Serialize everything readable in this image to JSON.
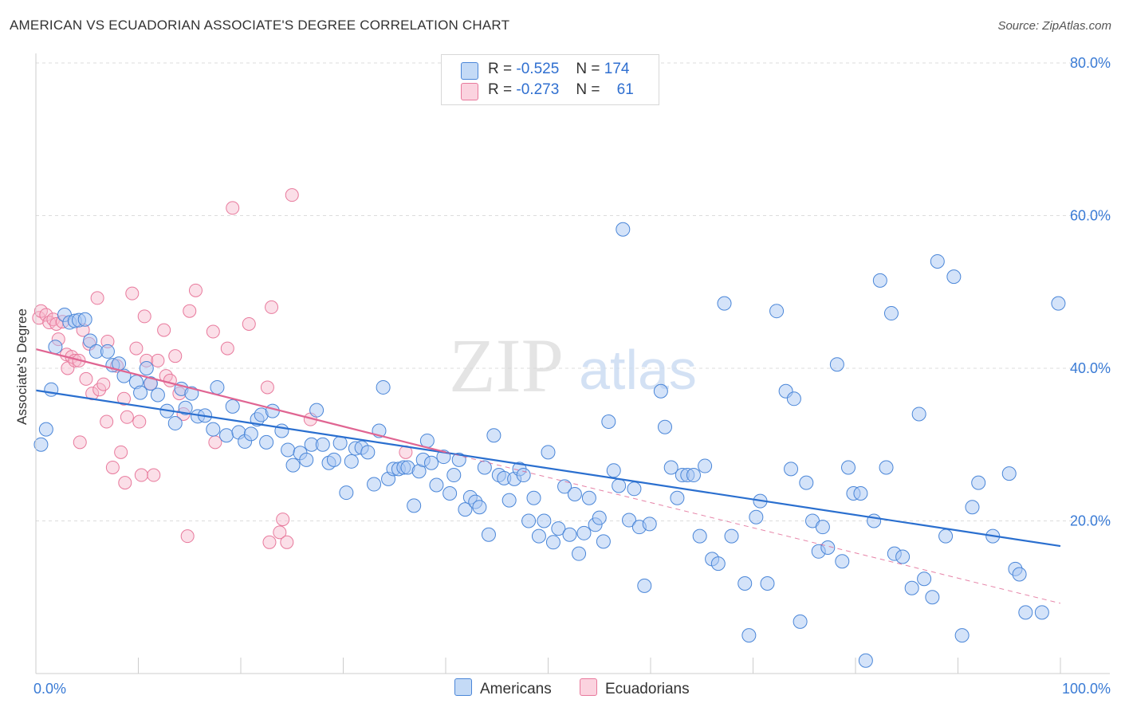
{
  "title": "AMERICAN VS ECUADORIAN ASSOCIATE'S DEGREE CORRELATION CHART",
  "source": "Source: ZipAtlas.com",
  "legend": {
    "r_label": "R =",
    "n_label": "N =",
    "rows": [
      {
        "r": "-0.525",
        "n": "174",
        "color": "#a9c8f3"
      },
      {
        "r": "-0.273",
        "n": "61",
        "color": "#f6b8cb"
      }
    ]
  },
  "bottom_legend": [
    {
      "label": "Americans",
      "color": "#a9c8f3"
    },
    {
      "label": "Ecuadorians",
      "color": "#f6b8cb"
    }
  ],
  "watermark": {
    "zip": "ZIP",
    "atlas": "atlas"
  },
  "chart_data": {
    "type": "scatter",
    "title": "AMERICAN VS ECUADORIAN ASSOCIATE'S DEGREE CORRELATION CHART",
    "xlabel": "",
    "ylabel": "Associate's Degree",
    "xlim": [
      0,
      100
    ],
    "ylim": [
      0,
      80
    ],
    "x_tick_labels": [
      "0.0%",
      "100.0%"
    ],
    "y_tick_labels": [
      "20.0%",
      "40.0%",
      "60.0%",
      "80.0%"
    ],
    "y_ticks": [
      20,
      40,
      60,
      80
    ],
    "grid": true,
    "legend_position": "top-center",
    "colors": {
      "americans": "#4a86d8",
      "americans_fill": "#a9c8f3",
      "ecuadorians": "#e8799c",
      "ecuadorians_fill": "#f6b8cb",
      "trend_blue": "#2a6fcf",
      "trend_pink": "#e06592"
    },
    "series": [
      {
        "name": "Americans",
        "r": -0.525,
        "n": 174,
        "trend": {
          "x": [
            0,
            100
          ],
          "y": [
            37.1,
            16.7
          ]
        },
        "points": [
          [
            0.5,
            30.0
          ],
          [
            1.0,
            32.0
          ],
          [
            1.5,
            37.2
          ],
          [
            1.9,
            42.8
          ],
          [
            2.8,
            47.0
          ],
          [
            3.3,
            46.0
          ],
          [
            3.8,
            46.2
          ],
          [
            4.2,
            46.3
          ],
          [
            4.8,
            46.4
          ],
          [
            5.3,
            43.6
          ],
          [
            5.9,
            42.2
          ],
          [
            7.0,
            42.2
          ],
          [
            7.5,
            40.4
          ],
          [
            8.1,
            40.6
          ],
          [
            8.6,
            39.0
          ],
          [
            9.8,
            38.2
          ],
          [
            10.2,
            36.8
          ],
          [
            10.8,
            40.0
          ],
          [
            11.2,
            38.0
          ],
          [
            11.9,
            36.5
          ],
          [
            12.8,
            34.4
          ],
          [
            13.6,
            32.8
          ],
          [
            14.2,
            37.3
          ],
          [
            14.6,
            34.8
          ],
          [
            15.2,
            36.7
          ],
          [
            15.8,
            33.7
          ],
          [
            16.5,
            33.8
          ],
          [
            17.3,
            32.0
          ],
          [
            17.7,
            37.5
          ],
          [
            18.6,
            31.2
          ],
          [
            19.2,
            35.0
          ],
          [
            19.8,
            31.6
          ],
          [
            20.4,
            30.4
          ],
          [
            21.0,
            31.4
          ],
          [
            21.6,
            33.3
          ],
          [
            22.0,
            33.9
          ],
          [
            22.5,
            30.3
          ],
          [
            23.1,
            34.4
          ],
          [
            24.0,
            31.8
          ],
          [
            24.6,
            29.3
          ],
          [
            25.1,
            27.3
          ],
          [
            25.8,
            28.9
          ],
          [
            26.4,
            28.0
          ],
          [
            26.9,
            30.0
          ],
          [
            27.4,
            34.5
          ],
          [
            28.0,
            30.0
          ],
          [
            28.6,
            27.6
          ],
          [
            29.1,
            28.0
          ],
          [
            29.7,
            30.2
          ],
          [
            30.3,
            23.7
          ],
          [
            30.8,
            27.8
          ],
          [
            31.2,
            29.5
          ],
          [
            31.8,
            29.6
          ],
          [
            32.4,
            29.0
          ],
          [
            33.0,
            24.8
          ],
          [
            33.5,
            31.8
          ],
          [
            33.9,
            37.5
          ],
          [
            34.4,
            25.5
          ],
          [
            34.9,
            26.8
          ],
          [
            35.4,
            26.8
          ],
          [
            35.9,
            27.0
          ],
          [
            36.3,
            27.0
          ],
          [
            36.9,
            22.0
          ],
          [
            37.4,
            26.5
          ],
          [
            37.8,
            28.0
          ],
          [
            38.2,
            30.5
          ],
          [
            38.6,
            27.6
          ],
          [
            39.1,
            24.7
          ],
          [
            39.8,
            28.4
          ],
          [
            40.4,
            23.6
          ],
          [
            40.8,
            26.0
          ],
          [
            41.3,
            28.0
          ],
          [
            41.9,
            21.5
          ],
          [
            42.4,
            23.1
          ],
          [
            42.9,
            22.5
          ],
          [
            43.3,
            21.8
          ],
          [
            43.8,
            27.0
          ],
          [
            44.2,
            18.2
          ],
          [
            44.7,
            31.2
          ],
          [
            45.2,
            26.0
          ],
          [
            45.7,
            25.6
          ],
          [
            46.2,
            22.7
          ],
          [
            46.7,
            25.5
          ],
          [
            47.2,
            26.8
          ],
          [
            47.6,
            26.0
          ],
          [
            48.1,
            20.0
          ],
          [
            48.6,
            23.0
          ],
          [
            49.1,
            18.0
          ],
          [
            49.6,
            20.0
          ],
          [
            50.0,
            29.0
          ],
          [
            50.5,
            17.2
          ],
          [
            51.0,
            19.0
          ],
          [
            51.6,
            24.5
          ],
          [
            52.1,
            18.2
          ],
          [
            52.6,
            23.5
          ],
          [
            53.0,
            15.7
          ],
          [
            53.5,
            18.4
          ],
          [
            54.0,
            23.0
          ],
          [
            54.6,
            19.5
          ],
          [
            55.0,
            20.4
          ],
          [
            55.4,
            17.3
          ],
          [
            55.9,
            33.0
          ],
          [
            56.4,
            26.6
          ],
          [
            56.9,
            24.6
          ],
          [
            57.3,
            58.2
          ],
          [
            57.9,
            20.1
          ],
          [
            58.4,
            24.2
          ],
          [
            58.9,
            19.2
          ],
          [
            59.4,
            11.5
          ],
          [
            59.9,
            19.6
          ],
          [
            61.0,
            37.0
          ],
          [
            61.4,
            32.3
          ],
          [
            62.0,
            27.0
          ],
          [
            62.6,
            23.0
          ],
          [
            63.1,
            26.0
          ],
          [
            63.6,
            26.0
          ],
          [
            64.2,
            26.0
          ],
          [
            64.8,
            18.0
          ],
          [
            65.3,
            27.2
          ],
          [
            66.0,
            15.0
          ],
          [
            66.6,
            14.4
          ],
          [
            67.2,
            48.5
          ],
          [
            67.9,
            18.0
          ],
          [
            69.2,
            11.8
          ],
          [
            69.6,
            5.0
          ],
          [
            70.3,
            20.5
          ],
          [
            70.7,
            22.6
          ],
          [
            71.4,
            11.8
          ],
          [
            72.3,
            47.5
          ],
          [
            73.2,
            37.0
          ],
          [
            73.7,
            26.8
          ],
          [
            74.0,
            36.0
          ],
          [
            74.6,
            6.8
          ],
          [
            75.2,
            25.0
          ],
          [
            75.8,
            20.0
          ],
          [
            76.4,
            16.0
          ],
          [
            76.8,
            19.2
          ],
          [
            77.3,
            16.5
          ],
          [
            78.2,
            40.5
          ],
          [
            78.7,
            14.7
          ],
          [
            79.3,
            27.0
          ],
          [
            79.8,
            23.6
          ],
          [
            80.5,
            23.6
          ],
          [
            81.0,
            1.7
          ],
          [
            81.8,
            20.0
          ],
          [
            82.4,
            51.5
          ],
          [
            83.0,
            27.0
          ],
          [
            83.5,
            47.2
          ],
          [
            83.8,
            15.7
          ],
          [
            84.6,
            15.3
          ],
          [
            85.5,
            11.2
          ],
          [
            86.2,
            34.0
          ],
          [
            86.7,
            12.4
          ],
          [
            87.5,
            10.0
          ],
          [
            88.0,
            54.0
          ],
          [
            88.8,
            18.0
          ],
          [
            89.6,
            52.0
          ],
          [
            90.4,
            5.0
          ],
          [
            91.4,
            21.8
          ],
          [
            92.0,
            25.0
          ],
          [
            93.4,
            18.0
          ],
          [
            95.0,
            26.2
          ],
          [
            95.6,
            13.7
          ],
          [
            96.0,
            13.0
          ],
          [
            96.6,
            8.0
          ],
          [
            98.2,
            8.0
          ],
          [
            99.8,
            48.5
          ]
        ]
      },
      {
        "name": "Ecuadorians",
        "r": -0.273,
        "n": 61,
        "trend_solid": {
          "x": [
            0,
            40
          ],
          "y": [
            42.5,
            29.0
          ]
        },
        "trend_dashed": {
          "x": [
            40,
            100
          ],
          "y": [
            29.0,
            9.2
          ]
        },
        "points": [
          [
            0.3,
            46.6
          ],
          [
            0.5,
            47.5
          ],
          [
            1.0,
            47.0
          ],
          [
            1.3,
            46.0
          ],
          [
            1.7,
            46.4
          ],
          [
            2.0,
            45.8
          ],
          [
            2.2,
            43.8
          ],
          [
            2.6,
            46.1
          ],
          [
            3.0,
            41.8
          ],
          [
            3.1,
            40.0
          ],
          [
            3.5,
            41.5
          ],
          [
            3.8,
            41.0
          ],
          [
            4.2,
            41.0
          ],
          [
            4.3,
            30.3
          ],
          [
            4.6,
            45.0
          ],
          [
            4.9,
            38.6
          ],
          [
            5.2,
            43.2
          ],
          [
            5.5,
            36.7
          ],
          [
            6.0,
            49.2
          ],
          [
            6.2,
            37.2
          ],
          [
            6.6,
            37.9
          ],
          [
            6.9,
            33.0
          ],
          [
            7.0,
            43.5
          ],
          [
            7.5,
            27.0
          ],
          [
            7.9,
            40.3
          ],
          [
            8.3,
            29.0
          ],
          [
            8.6,
            36.0
          ],
          [
            8.7,
            25.0
          ],
          [
            8.9,
            33.6
          ],
          [
            9.4,
            49.8
          ],
          [
            9.8,
            42.6
          ],
          [
            10.1,
            33.0
          ],
          [
            10.3,
            26.0
          ],
          [
            10.6,
            46.8
          ],
          [
            10.8,
            41.0
          ],
          [
            11.2,
            38.0
          ],
          [
            11.5,
            26.0
          ],
          [
            11.9,
            41.0
          ],
          [
            12.5,
            45.0
          ],
          [
            12.7,
            39.0
          ],
          [
            13.1,
            38.4
          ],
          [
            13.6,
            41.6
          ],
          [
            14.0,
            36.7
          ],
          [
            14.4,
            34.0
          ],
          [
            14.8,
            18.0
          ],
          [
            15.0,
            47.5
          ],
          [
            15.6,
            50.2
          ],
          [
            17.3,
            44.8
          ],
          [
            17.5,
            30.3
          ],
          [
            18.7,
            42.6
          ],
          [
            19.2,
            61.0
          ],
          [
            20.8,
            45.8
          ],
          [
            22.6,
            37.5
          ],
          [
            22.8,
            17.2
          ],
          [
            23.0,
            48.0
          ],
          [
            23.8,
            18.5
          ],
          [
            24.1,
            20.2
          ],
          [
            24.5,
            17.2
          ],
          [
            25.0,
            62.7
          ],
          [
            26.8,
            33.3
          ],
          [
            36.1,
            29.0
          ]
        ]
      }
    ]
  }
}
